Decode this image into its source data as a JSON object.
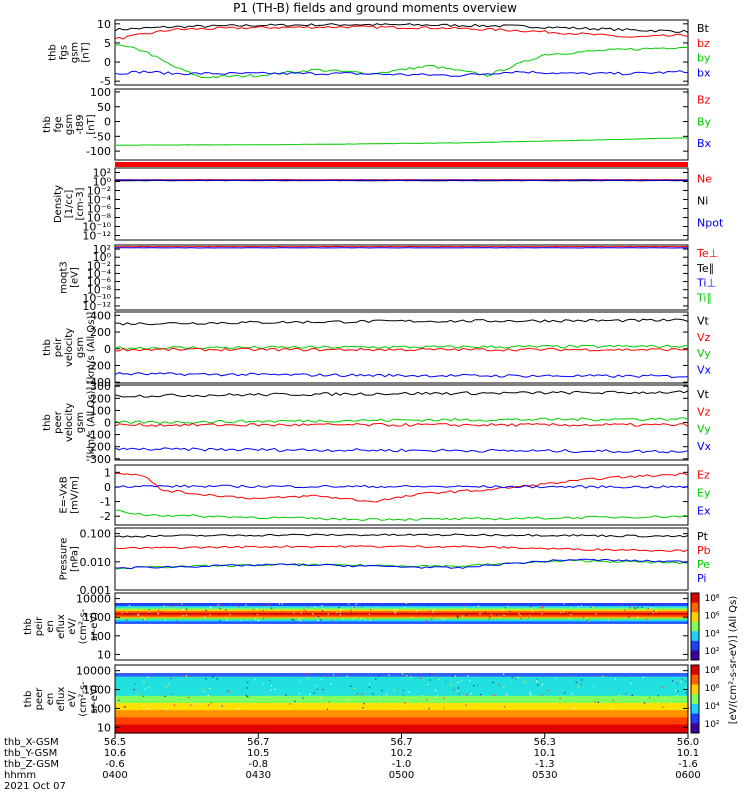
{
  "title": "P1 (TH-B) fields and ground moments overview",
  "chart_data": [
    {
      "type": "line",
      "ylabel": [
        "thb",
        "fgs",
        "gsm",
        "[nT]"
      ],
      "yticks": [
        "10",
        "5",
        "0",
        "-5"
      ],
      "ylim": [
        -6,
        11
      ],
      "legend": [
        {
          "name": "Bt",
          "color": "#000000"
        },
        {
          "name": "bz",
          "color": "#ff0000"
        },
        {
          "name": "by",
          "color": "#00cc00"
        },
        {
          "name": "bx",
          "color": "#0000ff"
        }
      ],
      "series": [
        {
          "name": "Bt",
          "color": "#000000",
          "x": [
            0,
            0.1,
            0.25,
            0.4,
            0.55,
            0.7,
            0.8,
            0.9,
            1
          ],
          "values": [
            8.5,
            9.2,
            9.6,
            9.8,
            9.7,
            9.4,
            8.9,
            8.4,
            8.0
          ]
        },
        {
          "name": "bz",
          "color": "#ff0000",
          "x": [
            0,
            0.1,
            0.25,
            0.4,
            0.55,
            0.7,
            0.8,
            0.9,
            1
          ],
          "values": [
            6.0,
            8.5,
            9.0,
            9.2,
            9.0,
            8.3,
            7.5,
            6.5,
            7.0
          ]
        },
        {
          "name": "by",
          "color": "#00cc00",
          "x": [
            0,
            0.05,
            0.1,
            0.15,
            0.25,
            0.35,
            0.45,
            0.55,
            0.65,
            0.75,
            0.85,
            1
          ],
          "values": [
            4.5,
            3.0,
            -1.0,
            -4.0,
            -3.5,
            -2.0,
            -3.0,
            -1.0,
            -3.5,
            2.0,
            3.0,
            4.0
          ]
        },
        {
          "name": "bx",
          "color": "#0000ff",
          "x": [
            0,
            0.05,
            0.1,
            0.2,
            0.4,
            0.6,
            0.7,
            0.8,
            0.9,
            1
          ],
          "values": [
            -3.0,
            -2.5,
            -3.0,
            -3.0,
            -3.0,
            -3.5,
            -2.5,
            -3.0,
            -3.0,
            -2.5
          ]
        }
      ]
    },
    {
      "type": "line",
      "ylabel": [
        "thb",
        "fge",
        "gsm",
        "-t89",
        "[nT]"
      ],
      "yticks": [
        "100",
        "50",
        "0",
        "-50",
        "-100"
      ],
      "ylim": [
        -130,
        110
      ],
      "legend": [
        {
          "name": "Bz",
          "color": "#ff0000"
        },
        {
          "name": "By",
          "color": "#00cc00"
        },
        {
          "name": "Bx",
          "color": "#0000ff"
        }
      ],
      "series": [
        {
          "name": "By",
          "color": "#00cc00",
          "x": [
            0,
            0.3,
            0.6,
            0.8,
            1
          ],
          "values": [
            -80,
            -78,
            -72,
            -64,
            -55
          ]
        }
      ]
    },
    {
      "type": "line",
      "ylabel": [
        "Density",
        "[1/cc]",
        "[cm-3]"
      ],
      "yticks": [
        "10²",
        "10⁰",
        "10⁻²",
        "10⁻⁴",
        "10⁻⁶",
        "10⁻⁸",
        "10⁻¹⁰",
        "10⁻¹²"
      ],
      "ylim": [
        -13,
        3
      ],
      "legend": [
        {
          "name": "Ne",
          "color": "#ff0000"
        },
        {
          "name": "Ni",
          "color": "#000000"
        },
        {
          "name": "Npot",
          "color": "#0000ff"
        }
      ],
      "series": [
        {
          "name": "Ni",
          "color": "#000000",
          "x": [
            0,
            1
          ],
          "values": [
            0.2,
            0.2
          ]
        },
        {
          "name": "Ne",
          "color": "#ff0000",
          "x": [
            0,
            1
          ],
          "values": [
            0.4,
            0.4
          ]
        },
        {
          "name": "Npot",
          "color": "#0000ff",
          "x": [
            0,
            1
          ],
          "values": [
            0.3,
            0.3
          ]
        }
      ]
    },
    {
      "type": "line",
      "ylabel": [
        "moqt3",
        "[eV]"
      ],
      "yticks": [
        "10²",
        "10⁰",
        "10⁻²",
        "10⁻⁴",
        "10⁻⁶",
        "10⁻⁸",
        "10⁻¹⁰",
        "10⁻¹²"
      ],
      "ylim": [
        -13,
        3
      ],
      "legend": [
        {
          "name": "Te⊥",
          "color": "#ff0000"
        },
        {
          "name": "Te∥",
          "color": "#000000"
        },
        {
          "name": "Ti⊥",
          "color": "#0000ff"
        },
        {
          "name": "Ti∥",
          "color": "#00cc00"
        }
      ],
      "series": [
        {
          "name": "Te⊥",
          "color": "#ff0000",
          "x": [
            0,
            1
          ],
          "values": [
            2.6,
            2.6
          ]
        },
        {
          "name": "Ti⊥",
          "color": "#0000ff",
          "x": [
            0,
            1
          ],
          "values": [
            2.3,
            2.3
          ]
        }
      ]
    },
    {
      "type": "line",
      "ylabel": [
        "thb",
        "peir",
        "velocity",
        "gsm",
        "[km/s (All Qs)]"
      ],
      "yticks": [
        "400",
        "200",
        "0",
        "-200",
        "-400"
      ],
      "ylim": [
        -410,
        440
      ],
      "legend": [
        {
          "name": "Vt",
          "color": "#000000"
        },
        {
          "name": "Vz",
          "color": "#ff0000"
        },
        {
          "name": "Vy",
          "color": "#00cc00"
        },
        {
          "name": "Vx",
          "color": "#0000ff"
        }
      ],
      "series": [
        {
          "name": "Vt",
          "color": "#000000",
          "x": [
            0,
            0.5,
            1
          ],
          "values": [
            300,
            330,
            340
          ]
        },
        {
          "name": "Vy",
          "color": "#00cc00",
          "x": [
            0,
            0.5,
            1
          ],
          "values": [
            10,
            20,
            30
          ]
        },
        {
          "name": "Vz",
          "color": "#ff0000",
          "x": [
            0,
            1
          ],
          "values": [
            -10,
            -10
          ]
        },
        {
          "name": "Vx",
          "color": "#0000ff",
          "x": [
            0,
            0.5,
            1
          ],
          "values": [
            -300,
            -320,
            -330
          ]
        }
      ]
    },
    {
      "type": "line",
      "ylabel": [
        "thb",
        "peer",
        "velocity",
        "gsm",
        "[km/s (All Qs)]"
      ],
      "yticks": [
        "300",
        "200",
        "100",
        "0",
        "-100",
        "-200",
        "-300"
      ],
      "ylim": [
        -310,
        310
      ],
      "legend": [
        {
          "name": "Vt",
          "color": "#000000"
        },
        {
          "name": "Vz",
          "color": "#ff0000"
        },
        {
          "name": "Vy",
          "color": "#00cc00"
        },
        {
          "name": "Vx",
          "color": "#0000ff"
        }
      ],
      "series": [
        {
          "name": "Vt",
          "color": "#000000",
          "x": [
            0,
            0.5,
            1
          ],
          "values": [
            220,
            240,
            250
          ]
        },
        {
          "name": "Vy",
          "color": "#00cc00",
          "x": [
            0,
            0.5,
            1
          ],
          "values": [
            0,
            20,
            30
          ]
        },
        {
          "name": "Vz",
          "color": "#ff0000",
          "x": [
            0,
            1
          ],
          "values": [
            -20,
            -20
          ]
        },
        {
          "name": "Vx",
          "color": "#0000ff",
          "x": [
            0,
            0.5,
            1
          ],
          "values": [
            -220,
            -230,
            -240
          ]
        }
      ]
    },
    {
      "type": "line",
      "ylabel": [
        "E=-VxB",
        "[mV/m]"
      ],
      "yticks": [
        "1",
        "0",
        "-1",
        "-2"
      ],
      "ylim": [
        -2.6,
        1.5
      ],
      "legend": [
        {
          "name": "Ez",
          "color": "#ff0000"
        },
        {
          "name": "Ey",
          "color": "#00cc00"
        },
        {
          "name": "Ex",
          "color": "#0000ff"
        }
      ],
      "series": [
        {
          "name": "Ez",
          "color": "#ff0000",
          "x": [
            0,
            0.05,
            0.08,
            0.15,
            0.25,
            0.35,
            0.45,
            0.55,
            0.65,
            0.75,
            0.85,
            1
          ],
          "values": [
            1.0,
            0.8,
            -0.2,
            -0.5,
            -0.8,
            -0.6,
            -1.0,
            -0.4,
            -0.2,
            0.2,
            0.6,
            0.9
          ]
        },
        {
          "name": "Ex",
          "color": "#0000ff",
          "x": [
            0,
            1
          ],
          "values": [
            0.05,
            0.0
          ]
        },
        {
          "name": "Ey",
          "color": "#00cc00",
          "x": [
            0,
            0.05,
            0.15,
            0.4,
            0.6,
            0.8,
            1
          ],
          "values": [
            -1.6,
            -1.9,
            -2.0,
            -2.2,
            -2.2,
            -2.1,
            -2.0
          ]
        }
      ]
    },
    {
      "type": "line",
      "ylabel": [
        "Pressure",
        "[nPa]"
      ],
      "yticks": [
        "0.100",
        "0.010",
        "0.001"
      ],
      "ylim": [
        -3,
        -0.8
      ],
      "legend": [
        {
          "name": "Pt",
          "color": "#000000"
        },
        {
          "name": "Pb",
          "color": "#ff0000"
        },
        {
          "name": "Pe",
          "color": "#00cc00"
        },
        {
          "name": "Pi",
          "color": "#0000ff"
        }
      ],
      "series": [
        {
          "name": "Pt",
          "color": "#000000",
          "x": [
            0,
            0.3,
            0.7,
            1
          ],
          "values": [
            0.08,
            0.09,
            0.09,
            0.08
          ]
        },
        {
          "name": "Pb",
          "color": "#ff0000",
          "x": [
            0,
            0.3,
            0.6,
            0.8,
            1
          ],
          "values": [
            0.03,
            0.035,
            0.035,
            0.028,
            0.025
          ]
        },
        {
          "name": "Pe",
          "color": "#00cc00",
          "x": [
            0,
            0.3,
            0.6,
            0.8,
            1
          ],
          "values": [
            0.006,
            0.008,
            0.007,
            0.011,
            0.009
          ]
        },
        {
          "name": "Pi",
          "color": "#0000ff",
          "x": [
            0,
            0.3,
            0.6,
            0.8,
            1
          ],
          "values": [
            0.006,
            0.008,
            0.006,
            0.012,
            0.01
          ]
        }
      ]
    },
    {
      "type": "heatmap",
      "ylabel": [
        "thb",
        "peir",
        "en",
        "eflux",
        "eV/",
        "(cm²-s-",
        "sr-eV)"
      ],
      "yticks": [
        "10000",
        "1000",
        "100",
        "10"
      ],
      "ylim": [
        0.7,
        4.3
      ]
    },
    {
      "type": "heatmap",
      "ylabel": [
        "thb",
        "peer",
        "en",
        "eflux",
        "eV/",
        "(cm²-s-",
        "sr-eV)"
      ],
      "yticks": [
        "10000",
        "1000",
        "100",
        "10"
      ],
      "ylim": [
        0.7,
        4.3
      ]
    }
  ],
  "colorbar": {
    "ticks": [
      "10⁸",
      "10⁶",
      "10⁴",
      "10²",
      "10⁸",
      "10⁶",
      "10⁴",
      "10²"
    ],
    "label": "[eV/(cm²-s-sr-eV)] (All Qs)"
  },
  "xaxis": {
    "row_labels": [
      "thb_X-GSM",
      "thb_Y-GSM",
      "thb_Z-GSM",
      "hhmm",
      "2021 Oct 07"
    ],
    "columns": [
      {
        "x": "56.5",
        "y": "10.6",
        "z": "-0.6",
        "t": "0400"
      },
      {
        "x": "56.7",
        "y": "10.5",
        "z": "-0.8",
        "t": "0430"
      },
      {
        "x": "56.7",
        "y": "10.2",
        "z": "-1.0",
        "t": "0500"
      },
      {
        "x": "56.3",
        "y": "10.1",
        "z": "-1.3",
        "t": "0530"
      },
      {
        "x": "56.0",
        "y": "10.1",
        "z": "-1.6",
        "t": "0600"
      }
    ]
  }
}
